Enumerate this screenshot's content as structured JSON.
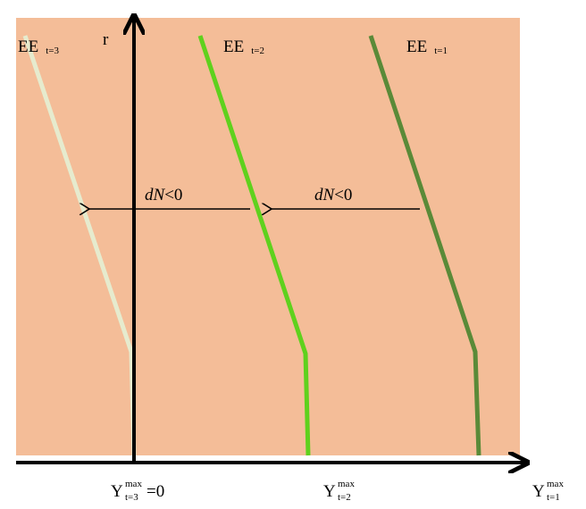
{
  "colors": {
    "background": "#f4bd98",
    "axis": "#000000",
    "curve_t3": "#e6ebce",
    "curve_t2": "#5fd11d",
    "curve_t1": "#5a8a38"
  },
  "axis": {
    "y_label": "r"
  },
  "curves": [
    {
      "id": "t3",
      "label_main": "EE",
      "label_sub": "t=3"
    },
    {
      "id": "t2",
      "label_main": "EE",
      "label_sub": "t=2"
    },
    {
      "id": "t1",
      "label_main": "EE",
      "label_sub": "t=1"
    }
  ],
  "shift_arrows": [
    {
      "text_italic": "dN",
      "text_rest": "<0"
    },
    {
      "text_italic": "dN",
      "text_rest": "<0"
    }
  ],
  "x_ticks": [
    {
      "main": "Y",
      "sup": "max",
      "sub": "t=3",
      "suffix": "=0"
    },
    {
      "main": "Y",
      "sup": "max",
      "sub": "t=2",
      "suffix": ""
    },
    {
      "main": "Y",
      "sup": "max",
      "sub": "t=1",
      "suffix": ""
    }
  ]
}
